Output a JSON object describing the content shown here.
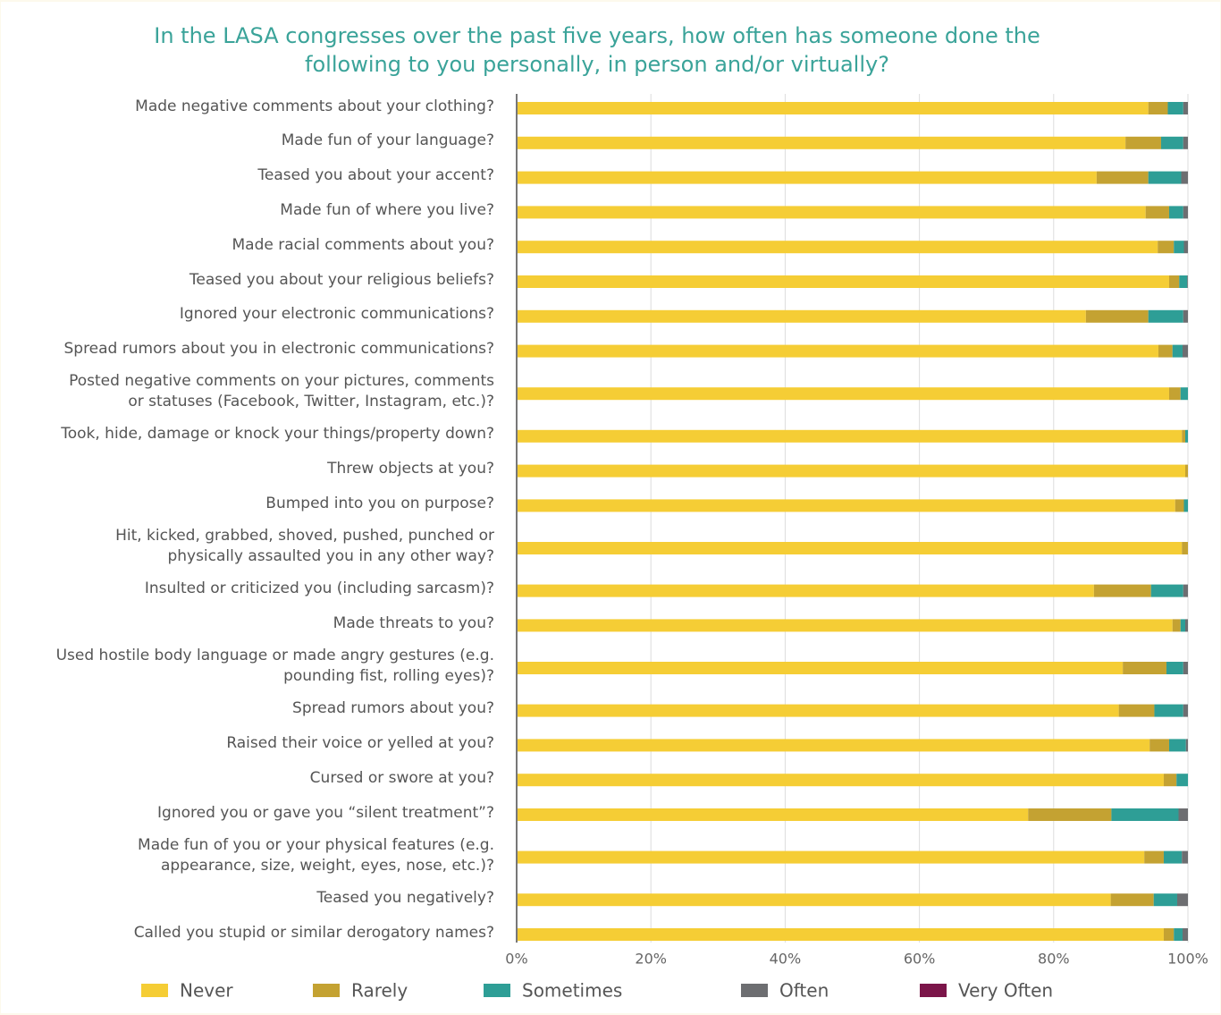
{
  "chart_data": {
    "type": "stacked_barh",
    "title": "In the LASA congresses over the past five years, how often has someone done the\nfollowing to you personally, in person and/or virtually?",
    "categories": [
      "Made negative comments about your clothing?",
      "Made fun of your language?",
      "Teased you about your accent?",
      "Made fun of where you live?",
      "Made racial comments about you?",
      "Teased you about your religious beliefs?",
      "Ignored your electronic communications?",
      "Spread rumors about you in electronic communications?",
      "Posted negative comments on your pictures, comments\nor statuses (Facebook, Twitter, Instagram, etc.)?",
      "Took, hide, damage or knock your things/property down?",
      "Threw objects at you?",
      "Bumped into you on purpose?",
      "Hit, kicked, grabbed, shoved, pushed, punched or\nphysically assaulted you in any other way?",
      "Insulted or criticized you (including sarcasm)?",
      "Made threats to you?",
      "Used hostile body language or made angry gestures (e.g.\npounding fist, rolling eyes)?",
      "Spread rumors about you?",
      "Raised their voice or yelled at you?",
      "Cursed or swore at you?",
      "Ignored you or gave you “silent treatment”?",
      "Made fun of you or your physical features (e.g.\nappearance, size, weight, eyes, nose, etc.)?",
      "Teased you negatively?",
      "Called you stupid or similar derogatory names?"
    ],
    "series": [
      {
        "name": "Never",
        "color": "#f5cd35",
        "values": [
          94.1,
          90.7,
          86.4,
          93.7,
          95.5,
          97.2,
          84.8,
          95.6,
          97.2,
          99.1,
          99.6,
          98.1,
          99.1,
          86.0,
          97.7,
          90.3,
          89.7,
          94.3,
          96.4,
          76.2,
          93.5,
          88.5,
          96.4
        ]
      },
      {
        "name": "Rarely",
        "color": "#c4a232",
        "values": [
          2.9,
          5.3,
          7.7,
          3.5,
          2.4,
          1.5,
          9.3,
          2.1,
          1.7,
          0.5,
          0.4,
          1.3,
          0.9,
          8.5,
          1.2,
          6.5,
          5.3,
          2.9,
          1.9,
          12.4,
          2.9,
          6.4,
          1.5
        ]
      },
      {
        "name": "Sometimes",
        "color": "#2e9e96",
        "values": [
          2.3,
          3.3,
          4.9,
          2.1,
          1.5,
          1.2,
          5.2,
          1.5,
          1.1,
          0.4,
          0,
          0.6,
          0,
          4.8,
          0.7,
          2.5,
          4.3,
          2.5,
          1.7,
          10.0,
          2.7,
          3.5,
          1.3
        ]
      },
      {
        "name": "Often",
        "color": "#6d6e71",
        "values": [
          0.7,
          0.7,
          1.0,
          0.7,
          0.6,
          0.1,
          0.7,
          0.8,
          0,
          0,
          0,
          0,
          0,
          0.7,
          0.4,
          0.7,
          0.7,
          0.3,
          0,
          1.4,
          0.9,
          1.6,
          0.8
        ]
      },
      {
        "name": "Very Often",
        "color": "#7b1549",
        "values": [
          0,
          0,
          0,
          0,
          0,
          0,
          0,
          0,
          0,
          0,
          0,
          0,
          0,
          0,
          0,
          0,
          0,
          0,
          0,
          0,
          0,
          0,
          0
        ]
      }
    ],
    "xlim": [
      0,
      100
    ],
    "xticks": [
      {
        "value": 0,
        "label": "0%"
      },
      {
        "value": 20,
        "label": "20%"
      },
      {
        "value": 40,
        "label": "40%"
      },
      {
        "value": 60,
        "label": "60%"
      },
      {
        "value": 80,
        "label": "80%"
      },
      {
        "value": 100,
        "label": "100%"
      }
    ],
    "grid": true
  }
}
